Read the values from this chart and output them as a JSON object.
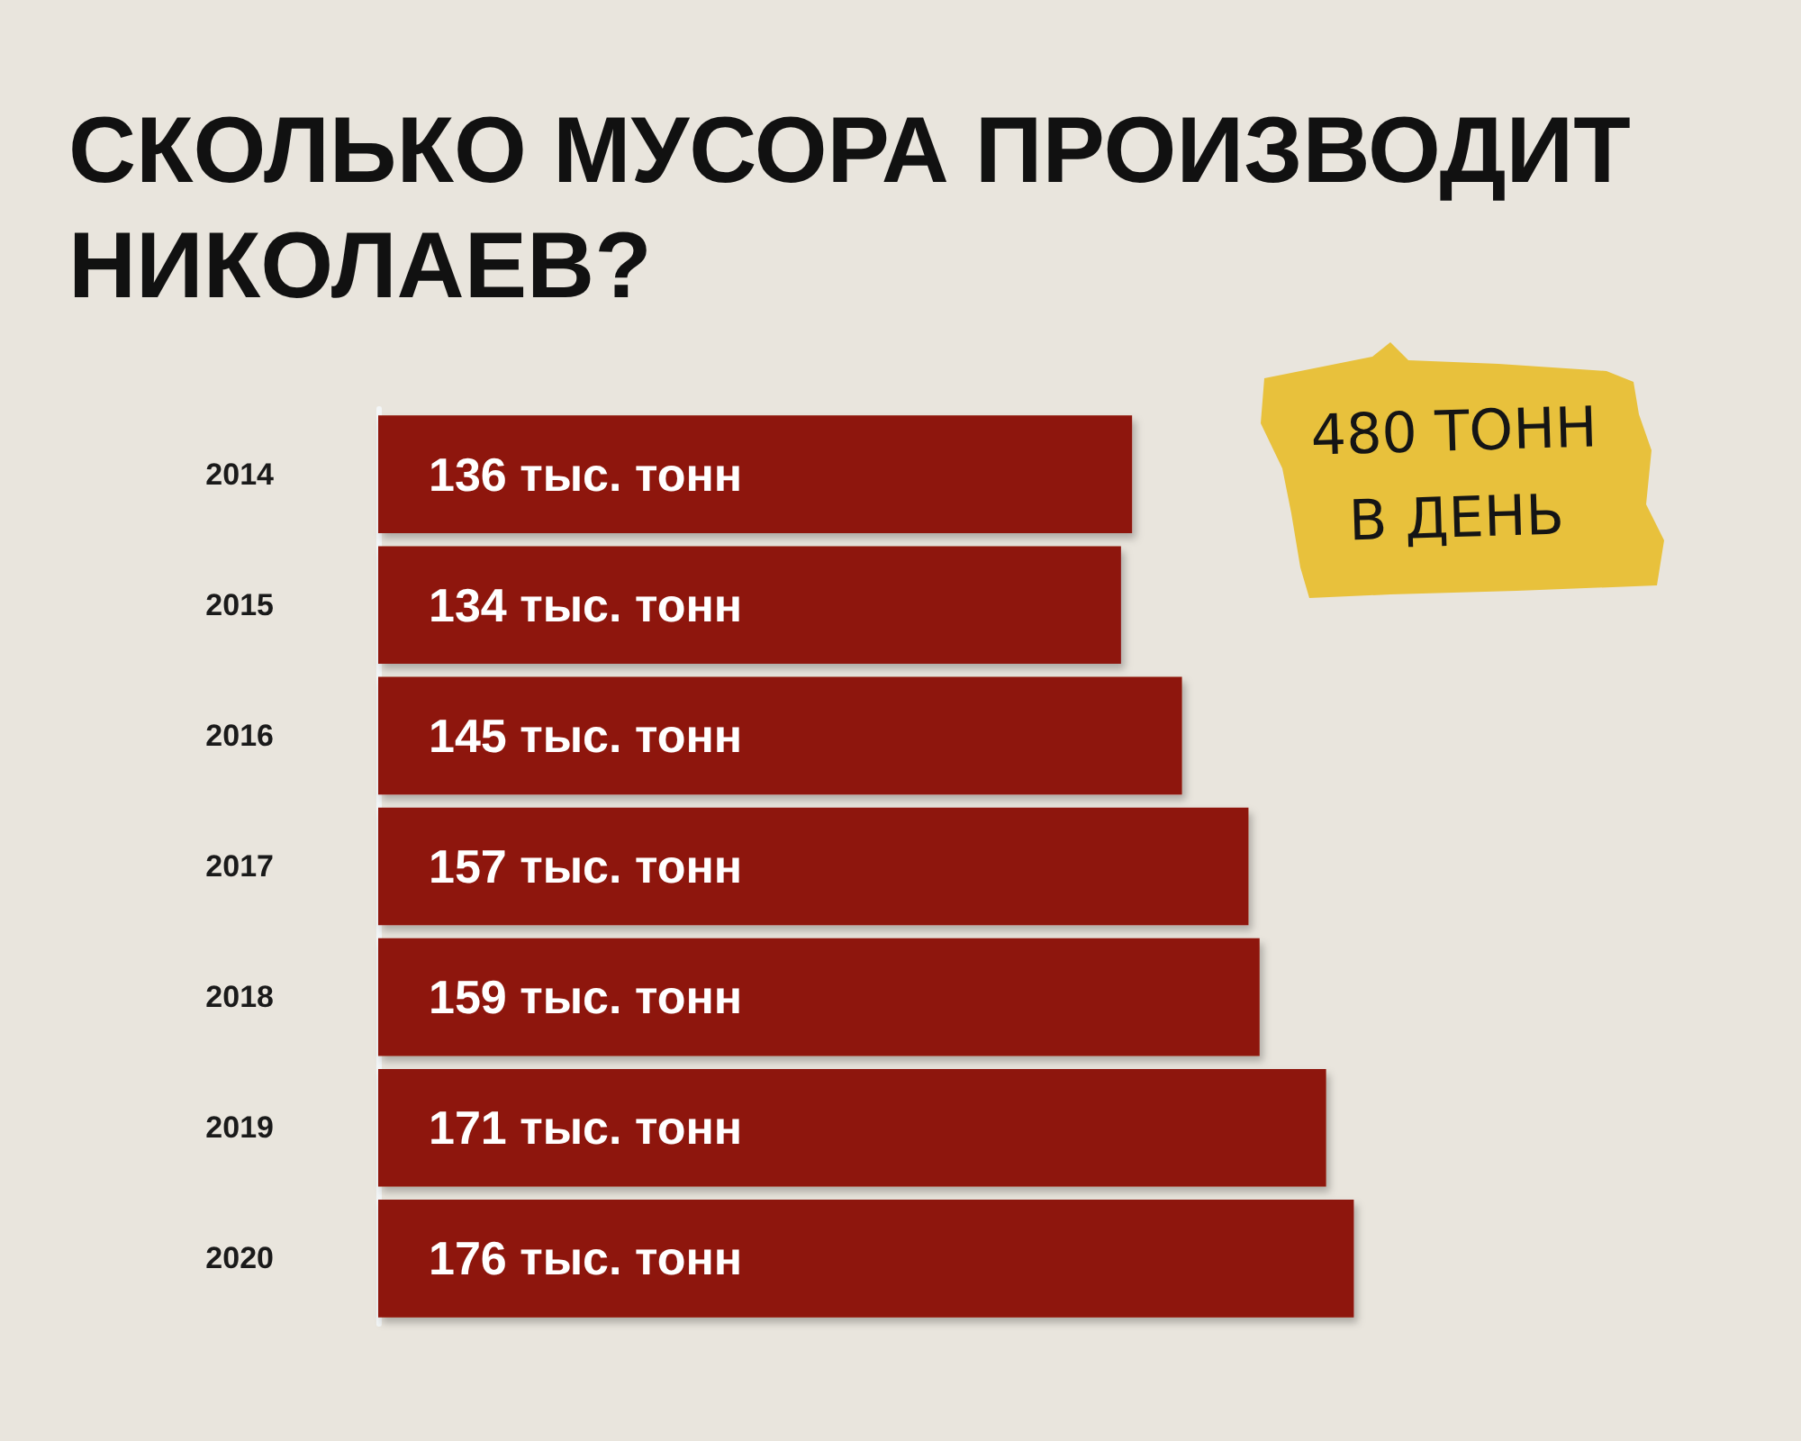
{
  "chart_data": {
    "type": "bar",
    "orientation": "horizontal",
    "title": "СКОЛЬКО МУСОРА ПРОИЗВОДИТ НИКОЛАЕВ?",
    "categories": [
      "2014",
      "2015",
      "2016",
      "2017",
      "2018",
      "2019",
      "2020"
    ],
    "values": [
      136,
      134,
      145,
      157,
      159,
      171,
      176
    ],
    "color": "#8e1209",
    "value_labels": [
      "136 тыс. тонн",
      "134 тыс. тонн",
      "145 тыс. тонн",
      "157 тыс. тонн",
      "159 тыс. тонн",
      "171 тыс. тонн",
      "176 тыс. тонн"
    ],
    "tick_labels": "y",
    "annotations": [
      "480 ТОНН В ДЕНЬ"
    ]
  }
}
